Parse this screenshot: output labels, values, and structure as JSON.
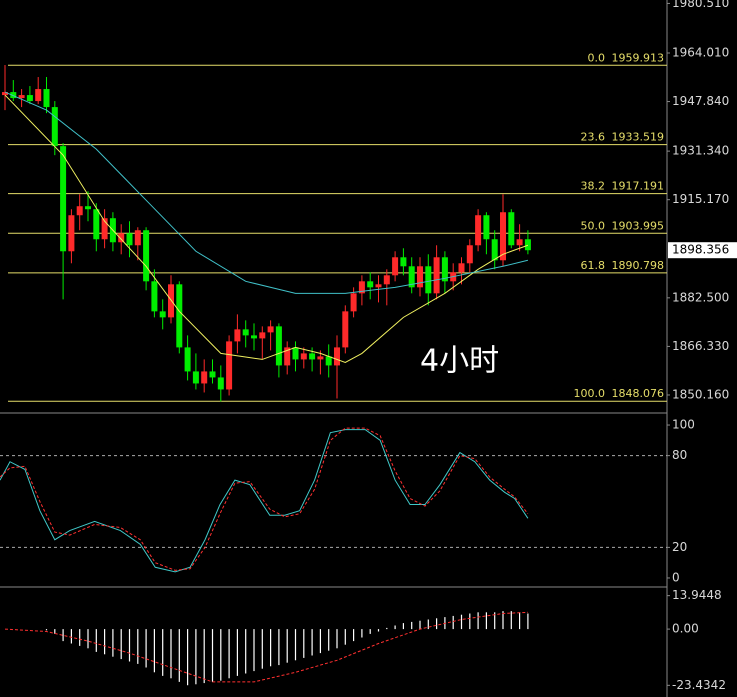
{
  "chart_data": [
    {
      "type": "candlestick",
      "annotation": "4小时",
      "open": [
        1950,
        1951,
        1949,
        1950,
        1948,
        1952,
        1946,
        1933,
        1898,
        1910,
        1913,
        1912,
        1902,
        1909,
        1901,
        1904,
        1900,
        1905,
        1888,
        1878,
        1876,
        1887,
        1866,
        1858,
        1854,
        1858,
        1856,
        1852,
        1868,
        1872,
        1870,
        1869,
        1871,
        1873,
        1860,
        1866,
        1862,
        1864,
        1862,
        1863,
        1860,
        1866,
        1878,
        1884,
        1888,
        1886,
        1887,
        1890,
        1896,
        1893,
        1886,
        1893,
        1884,
        1896,
        1888,
        1891,
        1894,
        1900,
        1910,
        1902,
        1895,
        1911,
        1900,
        1902
      ],
      "high": [
        1960,
        1955,
        1952,
        1953,
        1956,
        1956,
        1948,
        1934,
        1912,
        1917,
        1918,
        1914,
        1912,
        1911,
        1907,
        1908,
        1906,
        1906,
        1892,
        1882,
        1890,
        1888,
        1870,
        1864,
        1862,
        1862,
        1860,
        1870,
        1877,
        1875,
        1874,
        1873,
        1875,
        1874,
        1868,
        1868,
        1866,
        1866,
        1865,
        1867,
        1870,
        1880,
        1886,
        1890,
        1891,
        1890,
        1892,
        1898,
        1899,
        1896,
        1896,
        1897,
        1900,
        1898,
        1894,
        1896,
        1902,
        1912,
        1911,
        1905,
        1917,
        1912,
        1907,
        1905
      ],
      "low": [
        1945,
        1948,
        1946,
        1947,
        1947,
        1944,
        1930,
        1882,
        1894,
        1905,
        1908,
        1898,
        1899,
        1898,
        1897,
        1896,
        1895,
        1885,
        1876,
        1872,
        1874,
        1864,
        1855,
        1852,
        1851,
        1854,
        1848,
        1850,
        1864,
        1866,
        1865,
        1862,
        1865,
        1856,
        1857,
        1858,
        1859,
        1858,
        1857,
        1856,
        1849,
        1864,
        1876,
        1880,
        1882,
        1881,
        1880,
        1888,
        1890,
        1884,
        1883,
        1880,
        1882,
        1884,
        1885,
        1887,
        1891,
        1898,
        1897,
        1892,
        1893,
        1899,
        1898,
        1897
      ],
      "close": [
        1951,
        1949,
        1950,
        1948,
        1952,
        1946,
        1933,
        1898,
        1910,
        1913,
        1912,
        1902,
        1909,
        1901,
        1904,
        1900,
        1905,
        1888,
        1878,
        1876,
        1887,
        1866,
        1858,
        1854,
        1858,
        1856,
        1852,
        1868,
        1872,
        1870,
        1869,
        1871,
        1873,
        1860,
        1866,
        1862,
        1864,
        1862,
        1863,
        1860,
        1866,
        1878,
        1884,
        1888,
        1886,
        1887,
        1890,
        1896,
        1893,
        1886,
        1893,
        1884,
        1896,
        1888,
        1891,
        1894,
        1900,
        1910,
        1902,
        1895,
        1911,
        1900,
        1902,
        1898.356
      ],
      "up_color": "#ff2a2a",
      "down_color": "#00ee00",
      "ylim": [
        1845.16,
        1981.65
      ],
      "yticks": [
        {
          "value": 1980.51,
          "label": "1980.510"
        },
        {
          "value": 1964.01,
          "label": "1964.010"
        },
        {
          "value": 1947.84,
          "label": "1947.840"
        },
        {
          "value": 1931.34,
          "label": "1931.340"
        },
        {
          "value": 1915.17,
          "label": "1915.170"
        },
        {
          "value": 1882.5,
          "label": "1882.500"
        },
        {
          "value": 1866.33,
          "label": "1866.330"
        },
        {
          "value": 1850.16,
          "label": "1850.160"
        }
      ],
      "last_price": 1898.356,
      "fib_color": "#e6de6a",
      "fib_levels": [
        {
          "label": "0.0",
          "price": 1959.913
        },
        {
          "label": "23.6",
          "price": 1933.519
        },
        {
          "label": "38.2",
          "price": 1917.191
        },
        {
          "label": "50.0",
          "price": 1903.995
        },
        {
          "label": "61.8",
          "price": 1890.798
        },
        {
          "label": "100.0",
          "price": 1848.076
        }
      ],
      "series": [
        {
          "color": "#f0f060",
          "x": [
            0,
            7,
            12,
            17,
            21,
            26,
            31,
            35,
            38,
            41,
            43,
            48,
            53,
            57,
            60,
            63
          ],
          "values": [
            1950,
            1930,
            1908,
            1893,
            1878,
            1864,
            1862,
            1866,
            1864,
            1861,
            1864,
            1876,
            1884,
            1892,
            1897,
            1900
          ]
        },
        {
          "color": "#40c0c8",
          "x": [
            0,
            5,
            11,
            17,
            23,
            29,
            35,
            41,
            47,
            53,
            60,
            63
          ],
          "values": [
            1951,
            1945,
            1932,
            1915,
            1898,
            1888,
            1884,
            1884,
            1886,
            1889,
            1893,
            1895
          ]
        }
      ]
    },
    {
      "type": "line",
      "ylim": [
        -4.6,
        104.6
      ],
      "yticks": [
        0,
        20,
        80,
        100
      ],
      "reference_lines": [
        20,
        80
      ],
      "series": [
        {
          "color": "#40c8c8",
          "x": [
            -0.6,
            0.6,
            2.4,
            4.2,
            6,
            7.8,
            10.8,
            13.9,
            16.3,
            18.1,
            20.5,
            22.3,
            24.1,
            25.9,
            27.7,
            29.5,
            31.9,
            33.7,
            35.5,
            37.3,
            39.2,
            41,
            43.4,
            45.2,
            47,
            48.8,
            50.6,
            52.4,
            54.8,
            56.6,
            58.4,
            60.2,
            61.4,
            63
          ],
          "values": [
            64,
            76,
            71,
            44,
            25,
            31,
            37,
            31,
            22,
            7,
            4,
            7,
            25,
            48,
            64,
            61,
            41,
            41,
            44,
            64,
            95,
            97,
            97,
            90,
            64,
            48,
            48,
            61,
            82,
            76,
            64,
            56,
            52,
            39
          ]
        },
        {
          "color": "#ff3030",
          "dashed": true,
          "x": [
            -0.6,
            0.6,
            2.4,
            4.2,
            6,
            7.8,
            10.8,
            13.9,
            16.3,
            18.1,
            20.5,
            22.3,
            24.1,
            25.9,
            27.7,
            29.5,
            31.9,
            33.7,
            35.5,
            37.3,
            39.2,
            41,
            43.4,
            45.2,
            47,
            48.8,
            50.6,
            52.4,
            54.8,
            56.6,
            58.4,
            60.2,
            61.4,
            63
          ],
          "values": [
            66,
            72,
            73,
            50,
            30,
            28,
            35,
            33,
            25,
            10,
            5,
            6,
            20,
            42,
            62,
            63,
            45,
            40,
            42,
            58,
            90,
            98,
            98,
            93,
            70,
            52,
            47,
            57,
            80,
            78,
            66,
            58,
            53,
            42
          ]
        }
      ]
    },
    {
      "type": "histogram-line",
      "ylim": [
        -28.3,
        16.3
      ],
      "yticks": [
        13.9448,
        {
          "value": 0,
          "label": "0.00"
        },
        -23.4342
      ],
      "bar_color": "#ffffff",
      "values": [
        0,
        0,
        0,
        0,
        0,
        -0.5,
        -2,
        -5,
        -6,
        -7,
        -8,
        -9.5,
        -10.5,
        -11.5,
        -12.5,
        -13.5,
        -14.5,
        -16,
        -18,
        -19.5,
        -20.5,
        -22,
        -23.4,
        -23,
        -22.5,
        -22,
        -21.5,
        -20.5,
        -19.5,
        -18.5,
        -17.5,
        -16.5,
        -15.5,
        -15,
        -14,
        -13,
        -12,
        -11,
        -10,
        -9,
        -8,
        -6.5,
        -5,
        -3.5,
        -2,
        -1,
        0.5,
        1.5,
        2.5,
        3,
        3.5,
        4,
        4.5,
        5,
        5.5,
        6,
        6.5,
        7,
        7,
        7,
        7.5,
        7.5,
        7,
        6.5
      ],
      "series": [
        {
          "color": "#ff3030",
          "dashed": true,
          "x": [
            0,
            5,
            10,
            15,
            20,
            25,
            30,
            35,
            40,
            45,
            50,
            55,
            60,
            63
          ],
          "values": [
            0,
            -1,
            -5,
            -10,
            -16,
            -22,
            -22,
            -18,
            -13,
            -6,
            0,
            4,
            6.5,
            7
          ]
        }
      ]
    }
  ]
}
